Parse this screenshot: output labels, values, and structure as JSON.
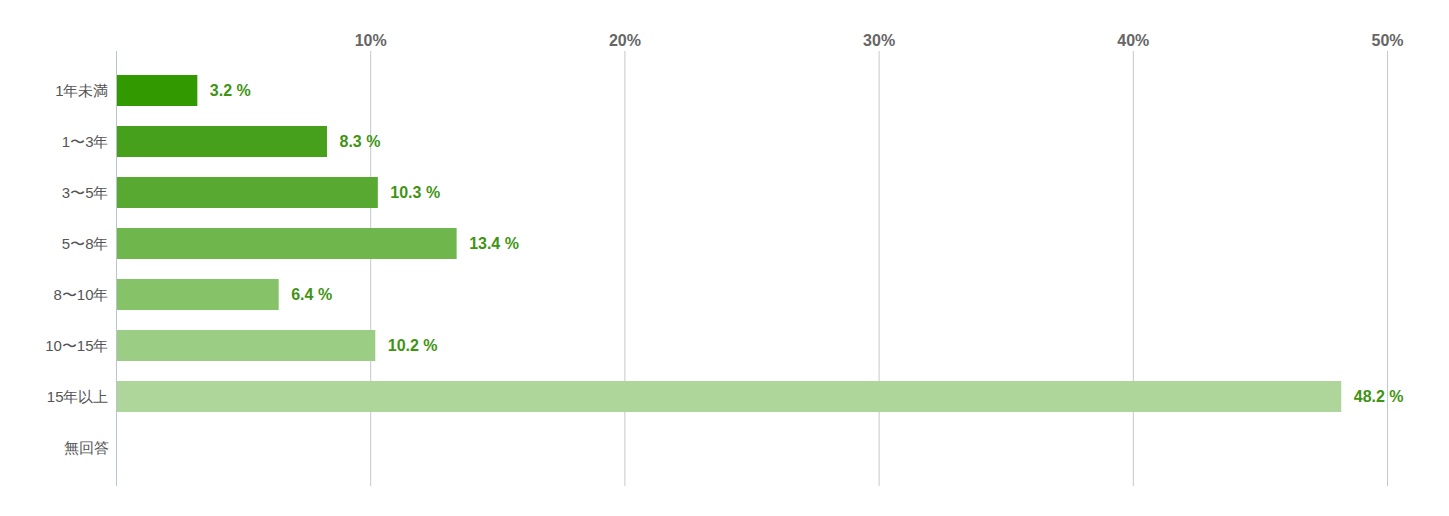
{
  "chart_data": {
    "type": "bar",
    "orientation": "horizontal",
    "categories": [
      "1年未満",
      "1〜3年",
      "3〜5年",
      "5〜8年",
      "8〜10年",
      "10〜15年",
      "15年以上",
      "無回答"
    ],
    "values": [
      3.2,
      8.3,
      10.3,
      13.4,
      6.4,
      10.2,
      48.2,
      null
    ],
    "value_labels": [
      "3.2 %",
      "8.3 %",
      "10.3 %",
      "13.4 %",
      "6.4 %",
      "10.2 %",
      "48.2 %",
      null
    ],
    "colors": [
      "#339900",
      "#47a01c",
      "#57a932",
      "#6fb74c",
      "#86c267",
      "#9ccd85",
      "#aed69b",
      "#c4e2b5"
    ],
    "xlim": [
      0,
      50
    ],
    "xticks": [
      {
        "value": 10,
        "label": "10%"
      },
      {
        "value": 20,
        "label": "20%"
      },
      {
        "value": 30,
        "label": "30%"
      },
      {
        "value": 40,
        "label": "40%"
      },
      {
        "value": 50,
        "label": "50%"
      }
    ],
    "grid": true,
    "data_labels": true
  }
}
